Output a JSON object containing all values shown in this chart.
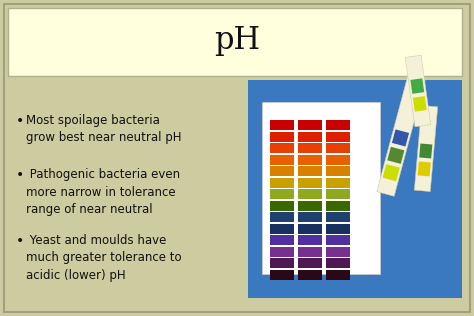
{
  "title": "pH",
  "title_fontsize": 22,
  "background_color": "#cccca0",
  "header_box_color": "#ffffdd",
  "header_box_edge": "#b0b090",
  "bullet_points": [
    "Most spoilage bacteria\ngrow best near neutral pH",
    " Pathogenic bacteria even\nmore narrow in tolerance\nrange of near neutral",
    " Yeast and moulds have\nmuch greater tolerance to\nacidic (lower) pH"
  ],
  "bullet_fontsize": 8.5,
  "text_color": "#111111",
  "blue_bg": "#3a78c0",
  "white_card": "#ffffff",
  "strip_bg": "#f5f0d8",
  "ph_colors": [
    "#c80000",
    "#dd2000",
    "#e84000",
    "#e86000",
    "#d88000",
    "#c8a000",
    "#90a820",
    "#3a6800",
    "#204070",
    "#183060",
    "#5030a0",
    "#783090",
    "#501850",
    "#2a0818"
  ]
}
